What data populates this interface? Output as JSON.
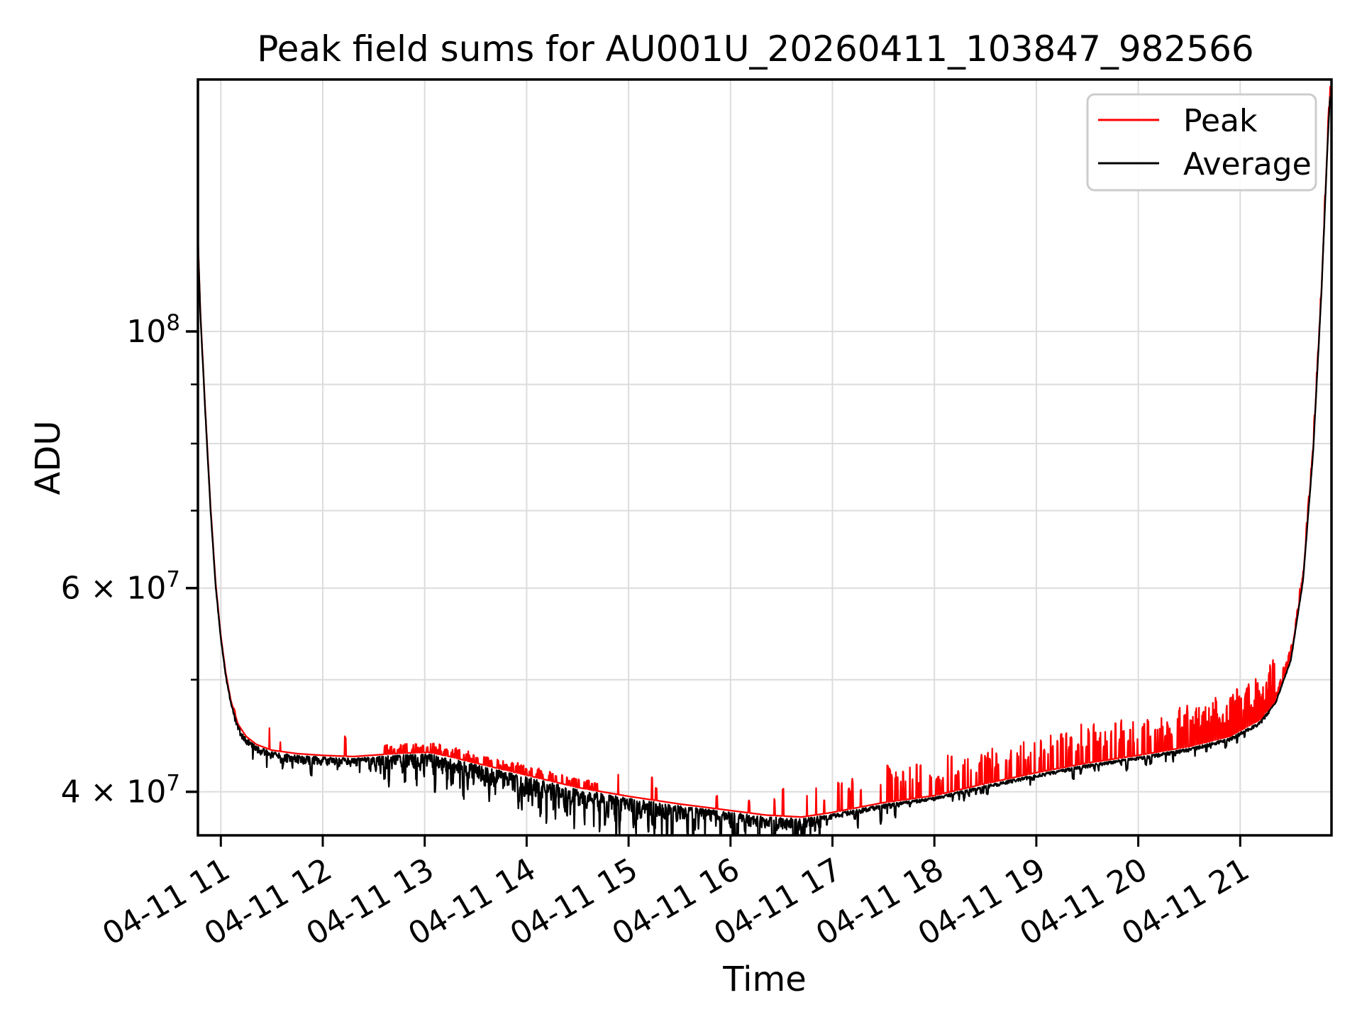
{
  "chart_data": {
    "type": "line",
    "title": "Peak field sums for AU001U_20260411_103847_982566",
    "xlabel": "Time",
    "ylabel": "ADU",
    "yscale": "log",
    "grid": true,
    "grid_color": "#dcdcdc",
    "background_color": "#ffffff",
    "xlim_hours": [
      10.777,
      21.899
    ],
    "ylim": [
      36700000,
      165000000
    ],
    "legend": {
      "position": "upper right",
      "entries": [
        "Peak",
        "Average"
      ]
    },
    "series": [
      {
        "name": "Peak",
        "color": "#ff0000",
        "role": "peak"
      },
      {
        "name": "Average",
        "color": "#000000",
        "role": "average"
      }
    ],
    "x_ticks": [
      {
        "value": 11,
        "label": "04-11 11"
      },
      {
        "value": 12,
        "label": "04-11 12"
      },
      {
        "value": 13,
        "label": "04-11 13"
      },
      {
        "value": 14,
        "label": "04-11 14"
      },
      {
        "value": 15,
        "label": "04-11 15"
      },
      {
        "value": 16,
        "label": "04-11 16"
      },
      {
        "value": 17,
        "label": "04-11 17"
      },
      {
        "value": 18,
        "label": "04-11 18"
      },
      {
        "value": 19,
        "label": "04-11 19"
      },
      {
        "value": 20,
        "label": "04-11 20"
      },
      {
        "value": 21,
        "label": "04-11 21"
      }
    ],
    "y_ticks_labeled": [
      {
        "value": 100000000,
        "prefix": "",
        "mantissa": "10",
        "exponent": "8",
        "major": true
      },
      {
        "value": 60000000,
        "prefix": "6 × ",
        "mantissa": "10",
        "exponent": "7",
        "major": false
      },
      {
        "value": 40000000,
        "prefix": "4 × ",
        "mantissa": "10",
        "exponent": "7",
        "major": false
      }
    ],
    "y_ticks_minor": [
      90000000,
      80000000,
      70000000,
      50000000
    ],
    "y_gridline_values": [
      100000000,
      90000000,
      80000000,
      70000000,
      60000000,
      50000000,
      40000000
    ],
    "average_keypoints": [
      [
        10.775,
        122000000
      ],
      [
        10.8,
        104000000
      ],
      [
        10.85,
        85000000
      ],
      [
        10.9,
        70500000
      ],
      [
        10.95,
        60500000
      ],
      [
        11.0,
        54500000
      ],
      [
        11.05,
        50500000
      ],
      [
        11.1,
        47800000
      ],
      [
        11.17,
        45600000
      ],
      [
        11.25,
        44500000
      ],
      [
        11.35,
        43800000
      ],
      [
        11.5,
        43300000
      ],
      [
        11.75,
        43000000
      ],
      [
        12.0,
        42850000
      ],
      [
        12.3,
        42750000
      ],
      [
        12.55,
        42900000
      ],
      [
        12.8,
        43050000
      ],
      [
        13.05,
        43100000
      ],
      [
        13.25,
        42750000
      ],
      [
        13.5,
        42200000
      ],
      [
        13.8,
        41600000
      ],
      [
        14.1,
        41000000
      ],
      [
        14.5,
        40200000
      ],
      [
        15.0,
        39500000
      ],
      [
        15.5,
        38900000
      ],
      [
        16.0,
        38400000
      ],
      [
        16.35,
        38050000
      ],
      [
        16.7,
        37900000
      ],
      [
        17.0,
        38250000
      ],
      [
        17.5,
        39000000
      ],
      [
        18.0,
        39550000
      ],
      [
        18.5,
        40500000
      ],
      [
        19.0,
        41400000
      ],
      [
        19.5,
        42200000
      ],
      [
        20.0,
        42850000
      ],
      [
        20.5,
        43600000
      ],
      [
        20.9,
        44500000
      ],
      [
        21.2,
        46000000
      ],
      [
        21.35,
        47800000
      ],
      [
        21.5,
        52000000
      ],
      [
        21.62,
        61000000
      ],
      [
        21.72,
        79000000
      ],
      [
        21.8,
        108000000
      ],
      [
        21.86,
        145000000
      ],
      [
        21.885,
        160000000
      ],
      [
        21.9,
        157000000
      ]
    ],
    "average_noise_segments": [
      [
        10.775,
        11.12,
        0.002,
        0.0,
        0.0
      ],
      [
        11.12,
        11.6,
        0.006,
        0.014,
        0.05
      ],
      [
        11.6,
        12.55,
        0.007,
        0.012,
        0.05
      ],
      [
        12.55,
        13.3,
        0.012,
        0.018,
        0.1
      ],
      [
        13.3,
        14.6,
        0.015,
        0.022,
        0.12
      ],
      [
        14.6,
        15.6,
        0.013,
        0.024,
        0.1
      ],
      [
        15.6,
        16.9,
        0.01,
        0.026,
        0.08
      ],
      [
        16.9,
        17.7,
        0.004,
        0.014,
        0.04
      ],
      [
        17.7,
        21.3,
        0.0028,
        0.007,
        0.03
      ],
      [
        21.3,
        21.91,
        0.0012,
        0.0,
        0.0
      ]
    ],
    "peak_spike_segments": [
      [
        10.775,
        11.25,
        0.005,
        0.01
      ],
      [
        11.25,
        12.6,
        0.016,
        0.014
      ],
      [
        12.6,
        14.7,
        0.007,
        0.28
      ],
      [
        14.7,
        16.8,
        0.022,
        0.03
      ],
      [
        16.8,
        17.4,
        0.024,
        0.11
      ],
      [
        17.4,
        18.4,
        0.026,
        0.14
      ],
      [
        18.4,
        19.5,
        0.026,
        0.2
      ],
      [
        19.5,
        20.5,
        0.028,
        0.3
      ],
      [
        20.5,
        21.35,
        0.03,
        0.55
      ],
      [
        21.35,
        21.91,
        0.008,
        0.3
      ]
    ],
    "peak_log_offset": 0.0016,
    "noise_seed": 42
  }
}
